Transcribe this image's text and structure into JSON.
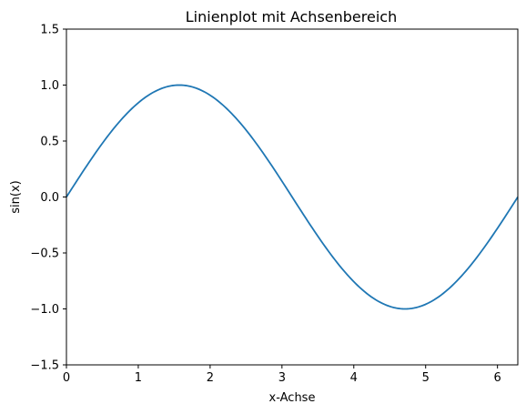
{
  "chart_data": {
    "type": "line",
    "title": "Linienplot mit Achsenbereich",
    "xlabel": "x-Achse",
    "ylabel": "sin(x)",
    "xlim": [
      0,
      6.283
    ],
    "ylim": [
      -1.5,
      1.5
    ],
    "grid": false,
    "x_ticks": [
      0,
      1,
      2,
      3,
      4,
      5,
      6
    ],
    "x_tick_labels": [
      "0",
      "1",
      "2",
      "3",
      "4",
      "5",
      "6"
    ],
    "y_ticks": [
      -1.5,
      -1.0,
      -0.5,
      0.0,
      0.5,
      1.0,
      1.5
    ],
    "y_tick_labels": [
      "−1.5",
      "−1.0",
      "−0.5",
      "0.0",
      "0.5",
      "1.0",
      "1.5"
    ],
    "series": [
      {
        "color": "#1f77b4",
        "x": [
          0,
          0.314,
          0.628,
          0.942,
          1.257,
          1.571,
          1.885,
          2.199,
          2.513,
          2.827,
          3.142,
          3.456,
          3.77,
          4.084,
          4.398,
          4.712,
          5.027,
          5.341,
          5.655,
          5.969,
          6.283
        ],
        "y": [
          0,
          0.309,
          0.588,
          0.809,
          0.951,
          1.0,
          0.951,
          0.809,
          0.588,
          0.309,
          0,
          -0.309,
          -0.588,
          -0.809,
          -0.951,
          -1.0,
          -0.951,
          -0.809,
          -0.588,
          -0.309,
          0
        ]
      }
    ]
  }
}
